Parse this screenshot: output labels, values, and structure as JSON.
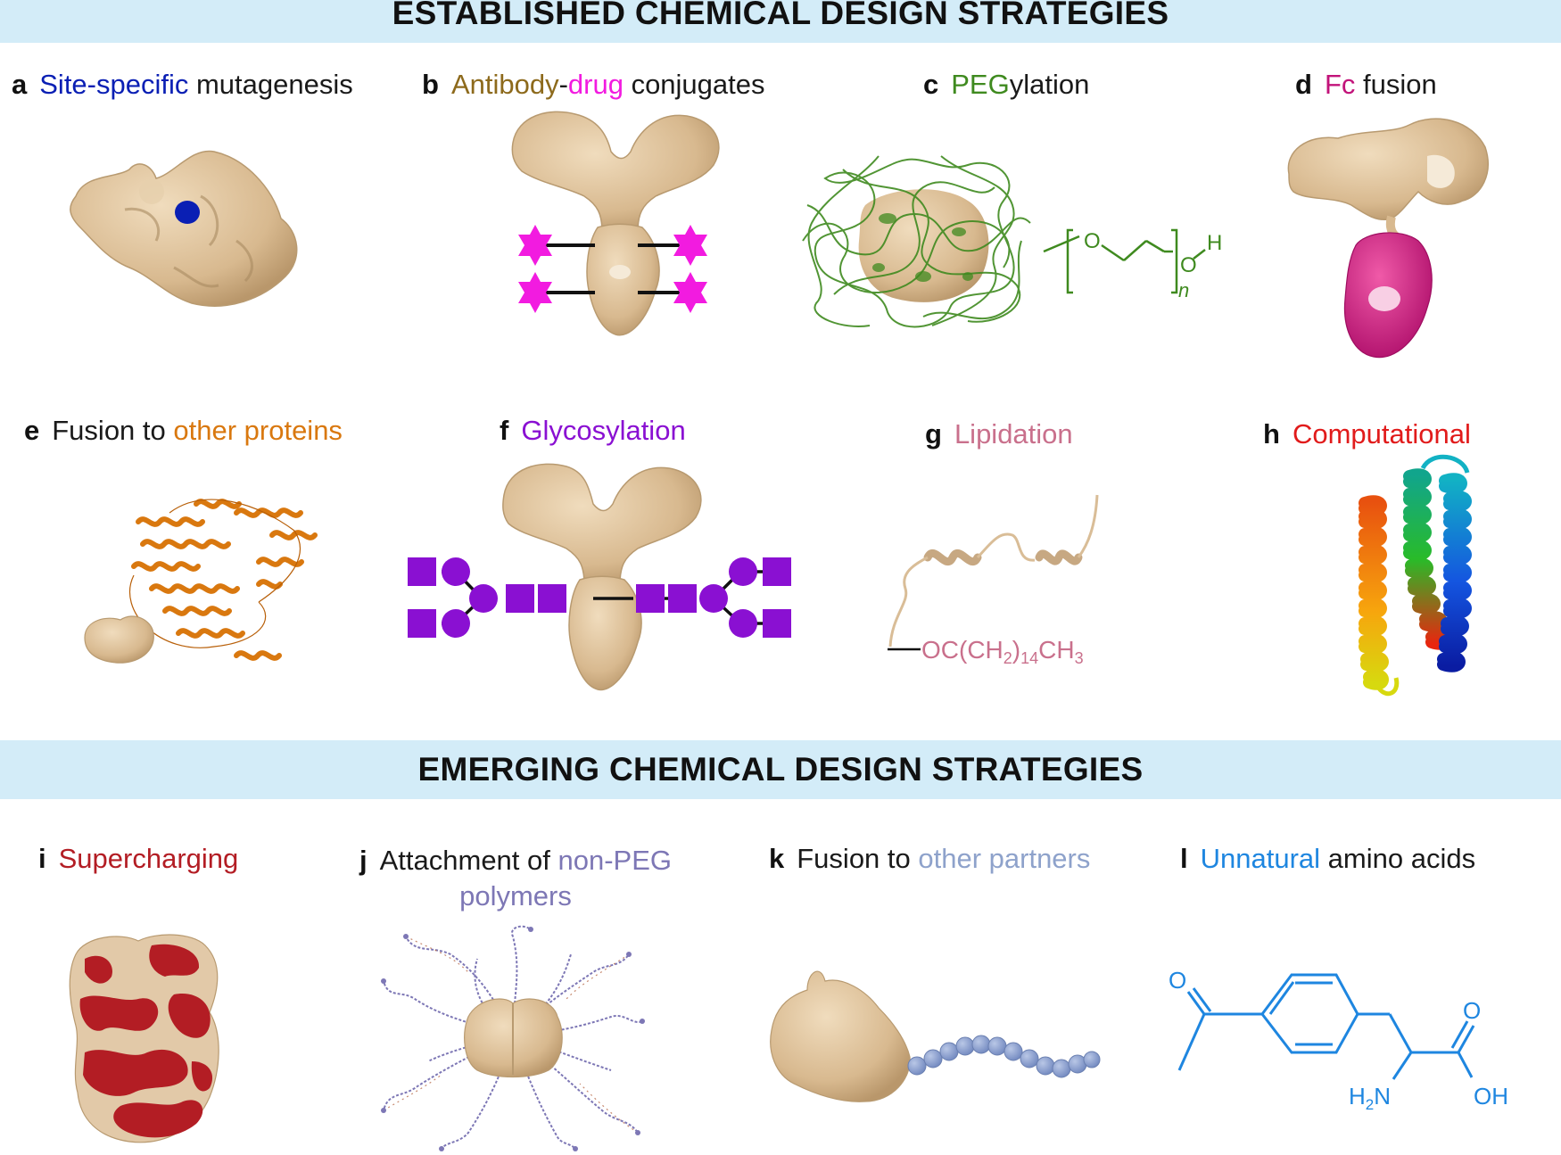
{
  "sections": {
    "established": "ESTABLISHED CHEMICAL DESIGN STRATEGIES",
    "emerging": "EMERGING CHEMICAL DESIGN STRATEGIES"
  },
  "colors": {
    "banner": "#d3ecf8",
    "protein_surface": "#dcc09b",
    "site_specific": "#0a1fb4",
    "antibody": "#8d6a1c",
    "drug": "#f21be0",
    "peg": "#3f8a1f",
    "fc": "#c2137a",
    "fusion_other": "#d9780f",
    "glycosylation": "#8a10d2",
    "lipidation": "#c9708c",
    "computational": "#e11b1b",
    "supercharging": "#b31d24",
    "non_peg": "#7d77b5",
    "other_partners": "#8ea2cb",
    "unnatural": "#1e86e0"
  },
  "panels": {
    "a": {
      "letter": "a",
      "highlight": "Site-specific",
      "rest": " mutagenesis"
    },
    "b": {
      "letter": "b",
      "part1": "Antibody",
      "dash": "-",
      "part2": "drug",
      "rest": " conjugates"
    },
    "c": {
      "letter": "c",
      "highlight": "PEG",
      "rest": "ylation"
    },
    "d": {
      "letter": "d",
      "highlight": "Fc",
      "rest": " fusion"
    },
    "e": {
      "letter": "e",
      "prefix": "Fusion to ",
      "highlight": "other proteins"
    },
    "f": {
      "letter": "f",
      "highlight": "Glycosylation"
    },
    "g": {
      "letter": "g",
      "highlight": "Lipidation"
    },
    "h": {
      "letter": "h",
      "highlight": "Computational"
    },
    "i": {
      "letter": "i",
      "highlight": "Supercharging"
    },
    "j": {
      "letter": "j",
      "prefix": "Attachment of ",
      "highlight": "non-PEG",
      "line2": "polymers"
    },
    "k": {
      "letter": "k",
      "prefix": "Fusion to ",
      "highlight": "other partners"
    },
    "l": {
      "letter": "l",
      "highlight": "Unnatural",
      "rest": " amino acids"
    }
  },
  "chem": {
    "peg_O": "O",
    "peg_OH_O": "O",
    "peg_H": "H",
    "peg_n": "n",
    "lipid_main": "OC(CH",
    "lipid_sub2": "2",
    "lipid_mid": ")",
    "lipid_sub14": "14",
    "lipid_ch": "CH",
    "lipid_sub3": "3",
    "aa_ketone_O": "O",
    "aa_acid_O": "O",
    "aa_H": "H",
    "aa_sub2": "2",
    "aa_N": "N",
    "aa_OH": "OH"
  }
}
